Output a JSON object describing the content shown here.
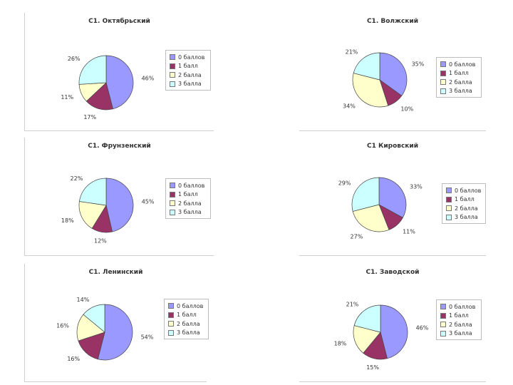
{
  "legend_labels": [
    "0 баллов",
    "1 балл",
    "2 балла",
    "3 балла"
  ],
  "colors": [
    "#9999FF",
    "#993366",
    "#FFFFCC",
    "#CCFFFF"
  ],
  "chart_data": [
    {
      "type": "pie",
      "title": "С1. Октябрьский",
      "categories": [
        "0 баллов",
        "1 балл",
        "2 балла",
        "3 балла"
      ],
      "values": [
        46,
        17,
        11,
        26
      ]
    },
    {
      "type": "pie",
      "title": "С1. Волжский",
      "categories": [
        "0 баллов",
        "1 балл",
        "2 балла",
        "3 балла"
      ],
      "values": [
        35,
        10,
        34,
        21
      ]
    },
    {
      "type": "pie",
      "title": "С1. Фрунзенский",
      "categories": [
        "0 баллов",
        "1 балл",
        "2 балла",
        "3 балла"
      ],
      "values": [
        45,
        12,
        18,
        22
      ]
    },
    {
      "type": "pie",
      "title": "С1 Кировский",
      "categories": [
        "0 баллов",
        "1 балл",
        "2 балла",
        "3 балла"
      ],
      "values": [
        33,
        11,
        27,
        29
      ]
    },
    {
      "type": "pie",
      "title": "С1. Ленинский",
      "categories": [
        "0 баллов",
        "1 балл",
        "2 балла",
        "3 балла"
      ],
      "values": [
        54,
        16,
        16,
        14
      ]
    },
    {
      "type": "pie",
      "title": "С1. Заводской",
      "categories": [
        "0 баллов",
        "1 балл",
        "2 балла",
        "3 балла"
      ],
      "values": [
        46,
        15,
        18,
        21
      ]
    }
  ]
}
